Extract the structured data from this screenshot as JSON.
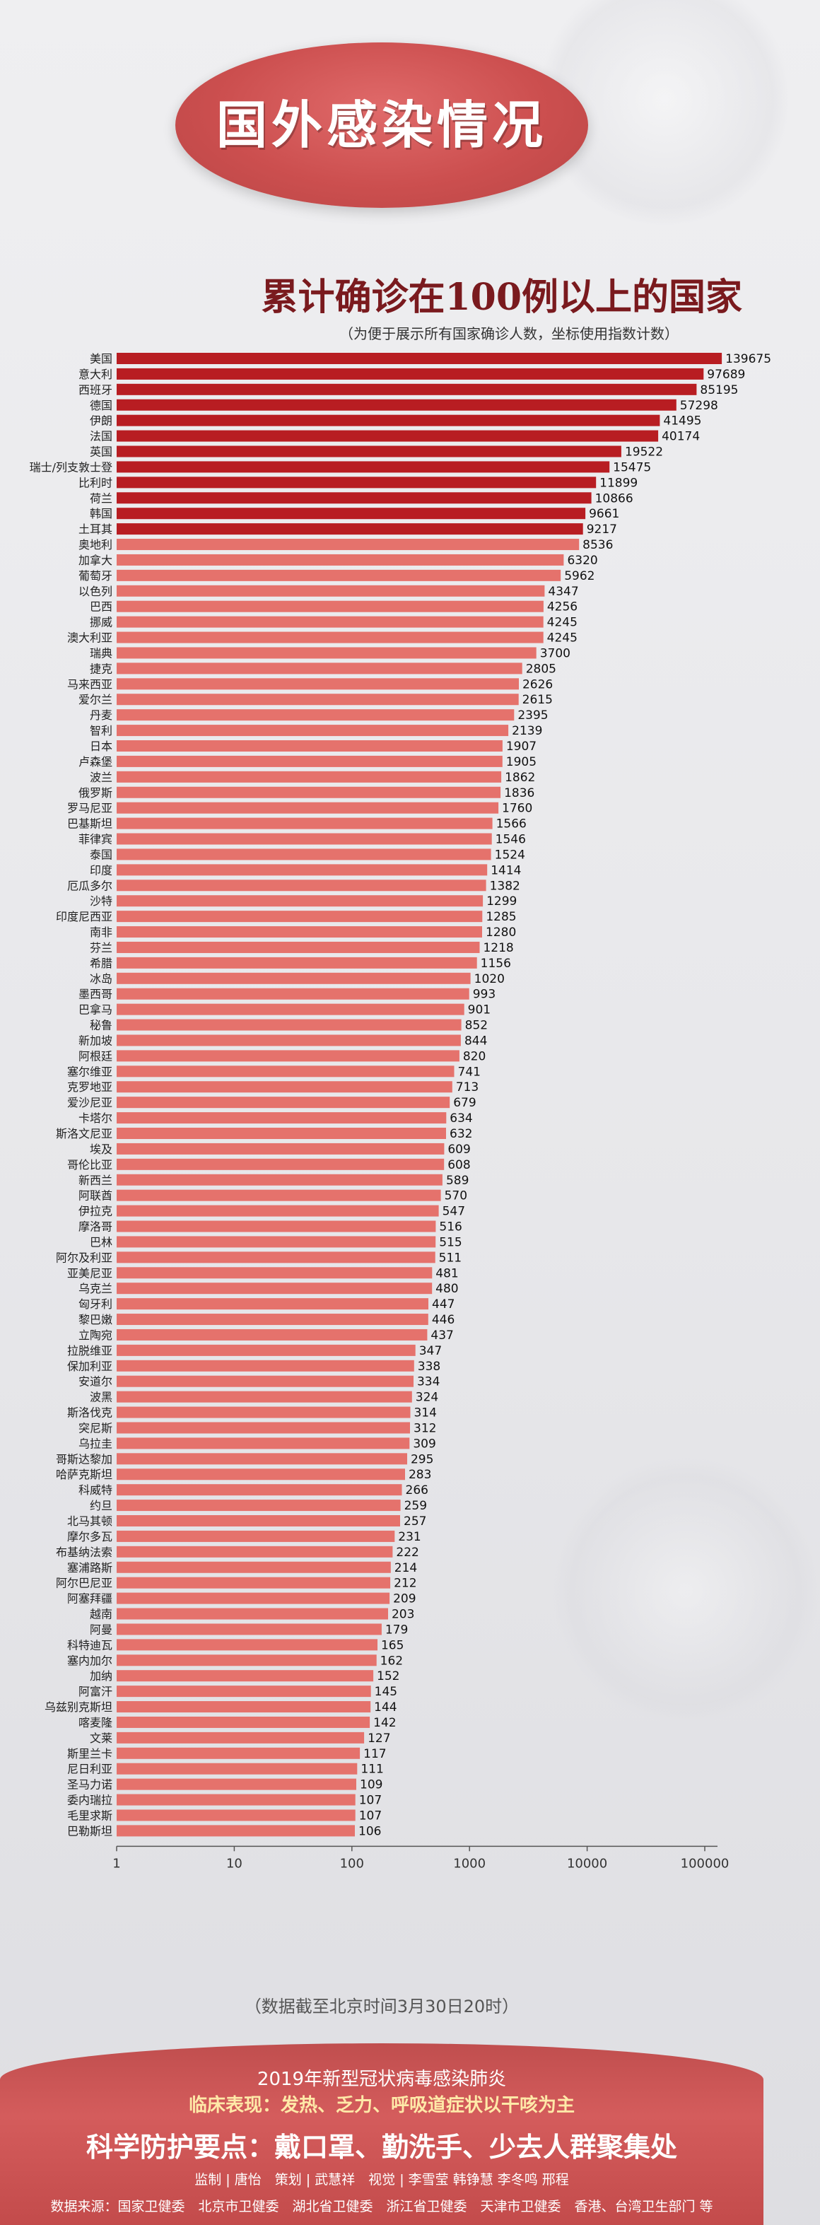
{
  "header": {
    "title": "国外感染情况"
  },
  "chart_data": {
    "type": "bar",
    "orientation": "horizontal",
    "title": "累计确诊在100例以上的国家",
    "subtitle": "（为便于展示所有国家确诊人数，坐标使用指数计数）",
    "x_scale": "log",
    "xlim": [
      1,
      200000
    ],
    "x_ticks": [
      "1",
      "10",
      "100",
      "1000",
      "10000",
      "100000"
    ],
    "grid": false,
    "colors": {
      "top": "#b81d22",
      "rest": "#e5726c"
    },
    "top_count": 12,
    "categories": [
      "美国",
      "意大利",
      "西班牙",
      "德国",
      "伊朗",
      "法国",
      "英国",
      "瑞士/列支敦士登",
      "比利时",
      "荷兰",
      "韩国",
      "土耳其",
      "奥地利",
      "加拿大",
      "葡萄牙",
      "以色列",
      "巴西",
      "挪威",
      "澳大利亚",
      "瑞典",
      "捷克",
      "马来西亚",
      "爱尔兰",
      "丹麦",
      "智利",
      "日本",
      "卢森堡",
      "波兰",
      "俄罗斯",
      "罗马尼亚",
      "巴基斯坦",
      "菲律宾",
      "泰国",
      "印度",
      "厄瓜多尔",
      "沙特",
      "印度尼西亚",
      "南非",
      "芬兰",
      "希腊",
      "冰岛",
      "墨西哥",
      "巴拿马",
      "秘鲁",
      "新加坡",
      "阿根廷",
      "塞尔维亚",
      "克罗地亚",
      "爱沙尼亚",
      "卡塔尔",
      "斯洛文尼亚",
      "埃及",
      "哥伦比亚",
      "新西兰",
      "阿联酋",
      "伊拉克",
      "摩洛哥",
      "巴林",
      "阿尔及利亚",
      "亚美尼亚",
      "乌克兰",
      "匈牙利",
      "黎巴嫩",
      "立陶宛",
      "拉脱维亚",
      "保加利亚",
      "安道尔",
      "波黑",
      "斯洛伐克",
      "突尼斯",
      "乌拉圭",
      "哥斯达黎加",
      "哈萨克斯坦",
      "科威特",
      "约旦",
      "北马其顿",
      "摩尔多瓦",
      "布基纳法索",
      "塞浦路斯",
      "阿尔巴尼亚",
      "阿塞拜疆",
      "越南",
      "阿曼",
      "科特迪瓦",
      "塞内加尔",
      "加纳",
      "阿富汗",
      "乌兹别克斯坦",
      "喀麦隆",
      "文莱",
      "斯里兰卡",
      "尼日利亚",
      "圣马力诺",
      "委内瑞拉",
      "毛里求斯",
      "巴勒斯坦"
    ],
    "values": [
      139675,
      97689,
      85195,
      57298,
      41495,
      40174,
      19522,
      15475,
      11899,
      10866,
      9661,
      9217,
      8536,
      6320,
      5962,
      4347,
      4256,
      4245,
      4245,
      3700,
      2805,
      2626,
      2615,
      2395,
      2139,
      1907,
      1905,
      1862,
      1836,
      1760,
      1566,
      1546,
      1524,
      1414,
      1382,
      1299,
      1285,
      1280,
      1218,
      1156,
      1020,
      993,
      901,
      852,
      844,
      820,
      741,
      713,
      679,
      634,
      632,
      609,
      608,
      589,
      570,
      547,
      516,
      515,
      511,
      481,
      480,
      447,
      446,
      437,
      347,
      338,
      334,
      324,
      314,
      312,
      309,
      295,
      283,
      266,
      259,
      257,
      231,
      222,
      214,
      212,
      209,
      203,
      179,
      165,
      162,
      152,
      145,
      144,
      142,
      127,
      117,
      111,
      109,
      107,
      107,
      106
    ]
  },
  "date_note": "（数据截至北京时间3月30日20时）",
  "footer": {
    "line1": "2019年新型冠状病毒感染肺炎",
    "line2": "临床表现：发热、乏力、呼吸道症状以干咳为主",
    "line3": "科学防护要点：戴口罩、勤洗手、少去人群聚集处",
    "line4": "监制 | 唐怡　策划 | 武慧祥　视觉 | 李雪莹 韩铮慧 李冬鸣 邢程",
    "line5": "数据来源：国家卫健委　北京市卫健委　湖北省卫健委　浙江省卫健委　天津市卫健委　香港、台湾卫生部门 等"
  }
}
